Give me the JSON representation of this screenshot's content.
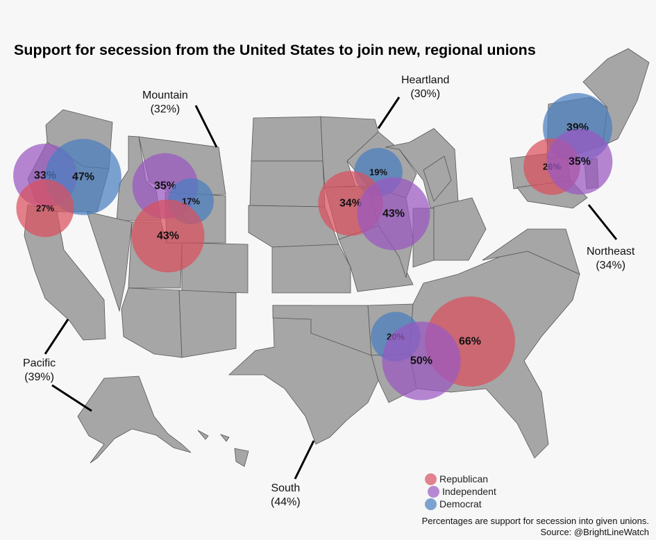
{
  "title": "Support for secession from the United States to join new, regional unions",
  "regions": {
    "mountain": {
      "name": "Mountain",
      "pct": "(32%)"
    },
    "heartland": {
      "name": "Heartland",
      "pct": "(30%)"
    },
    "northeast": {
      "name": "Northeast",
      "pct": "(34%)"
    },
    "pacific": {
      "name": "Pacific",
      "pct": "(39%)"
    },
    "south": {
      "name": "South",
      "pct": "(44%)"
    }
  },
  "bubbles": [
    {
      "region": "Pacific",
      "party": "Independent",
      "label": "33%",
      "value": 33
    },
    {
      "region": "Pacific",
      "party": "Democrat",
      "label": "47%",
      "value": 47
    },
    {
      "region": "Pacific",
      "party": "Republican",
      "label": "27%",
      "value": 27
    },
    {
      "region": "Mountain",
      "party": "Independent",
      "label": "35%",
      "value": 35
    },
    {
      "region": "Mountain",
      "party": "Democrat",
      "label": "17%",
      "value": 17
    },
    {
      "region": "Mountain",
      "party": "Republican",
      "label": "43%",
      "value": 43
    },
    {
      "region": "Heartland",
      "party": "Democrat",
      "label": "19%",
      "value": 19
    },
    {
      "region": "Heartland",
      "party": "Republican",
      "label": "34%",
      "value": 34
    },
    {
      "region": "Heartland",
      "party": "Independent",
      "label": "43%",
      "value": 43
    },
    {
      "region": "Northeast",
      "party": "Democrat",
      "label": "39%",
      "value": 39
    },
    {
      "region": "Northeast",
      "party": "Republican",
      "label": "26%",
      "value": 26
    },
    {
      "region": "Northeast",
      "party": "Independent",
      "label": "35%",
      "value": 35
    },
    {
      "region": "South",
      "party": "Democrat",
      "label": "20%",
      "value": 20
    },
    {
      "region": "South",
      "party": "Republican",
      "label": "66%",
      "value": 66
    },
    {
      "region": "South",
      "party": "Independent",
      "label": "50%",
      "value": 50
    }
  ],
  "colors": {
    "Republican": "#d9505e",
    "Independent": "#9a58c2",
    "Democrat": "#4a7ebf",
    "land": "#a6a6a6",
    "background": "#f7f7f7"
  },
  "legend": [
    {
      "party": "Republican",
      "label": "Republican"
    },
    {
      "party": "Independent",
      "label": "Independent"
    },
    {
      "party": "Democrat",
      "label": "Democrat"
    }
  ],
  "footer": {
    "note": "Percentages are support for secession into given unions.",
    "source": "Source: @BrightLineWatch"
  }
}
